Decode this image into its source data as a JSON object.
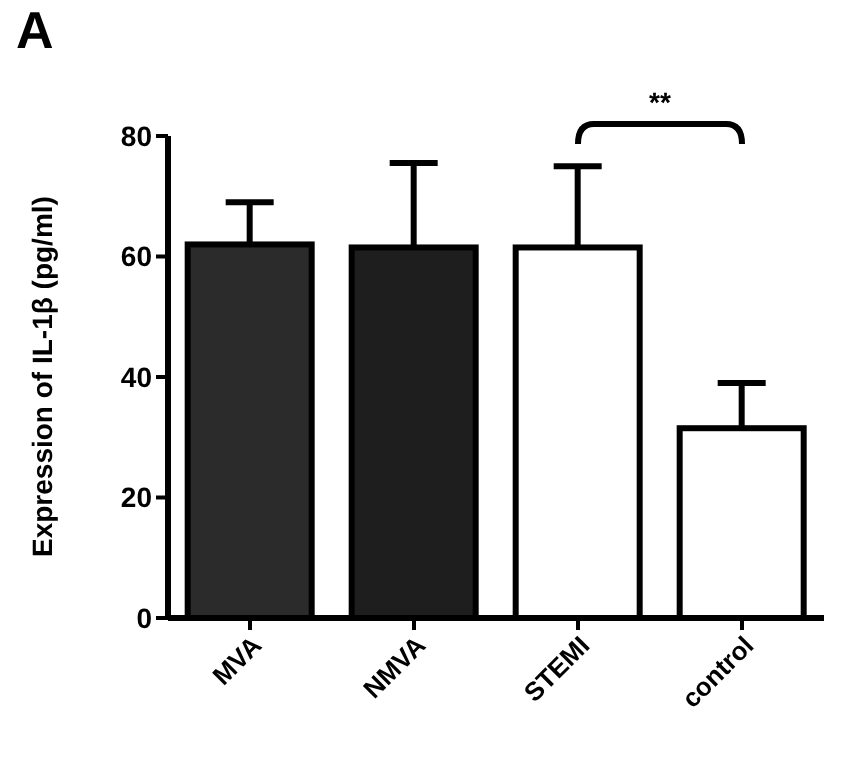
{
  "chart_data": {
    "type": "bar",
    "title": "A",
    "ylabel": "Expression of IL-1β (pg/ml)",
    "categories": [
      "MVA",
      "NMVA",
      "STEMI",
      "control"
    ],
    "values": [
      62,
      61.5,
      61.5,
      31.5
    ],
    "colors": [
      "#2b2b2b",
      "#1e1e1e",
      "#ffffff",
      "#ffffff"
    ],
    "errors": [
      [
        62,
        69
      ],
      [
        61.5,
        75.5
      ],
      [
        61.5,
        75
      ],
      [
        31.5,
        39
      ]
    ],
    "ylim": [
      0,
      80
    ],
    "yticks": [
      0,
      20,
      40,
      60,
      80
    ],
    "annotations": [
      "**"
    ]
  }
}
